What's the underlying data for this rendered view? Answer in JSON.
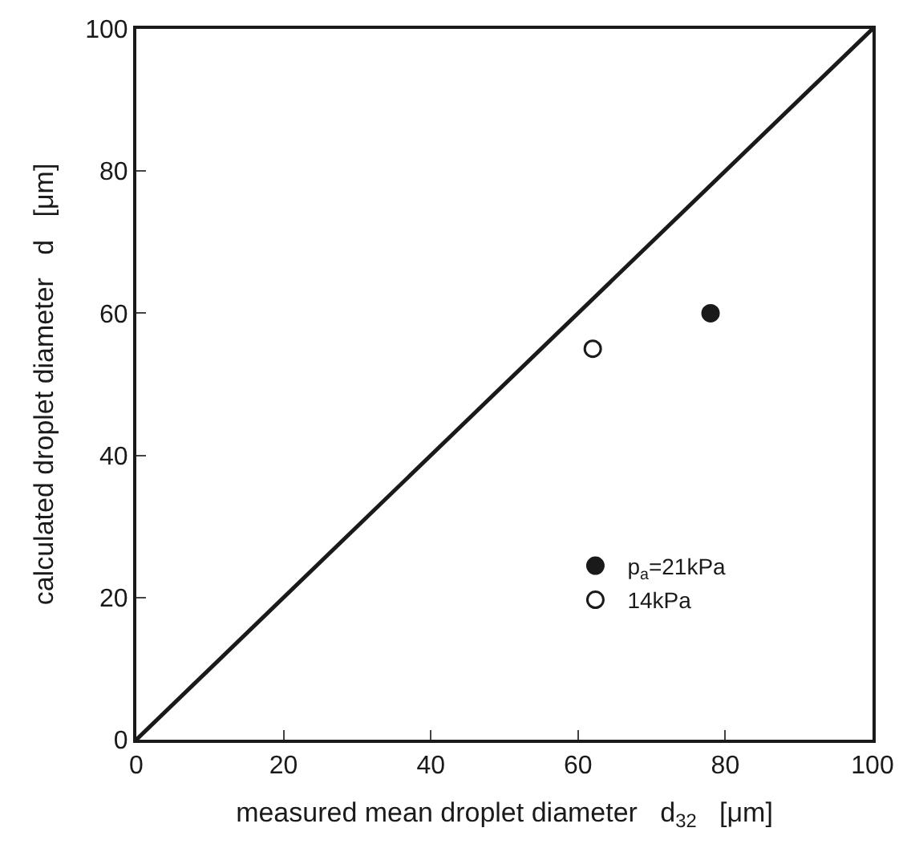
{
  "chart_data": {
    "type": "scatter",
    "xlabel": "measured mean droplet diameter   d$_{32}$   [μm]",
    "ylabel": "calculated droplet diameter   d   [μm]",
    "series": [
      {
        "name": "p$_{a}$=21kPa",
        "color": "#1a1a1a",
        "marker": "circle",
        "x": [
          78
        ],
        "values": [
          60
        ]
      },
      {
        "name": "14kPa",
        "color": "#ffffff",
        "marker": "circle",
        "x": [
          62
        ],
        "values": [
          55
        ]
      },
      {
        "type": "line",
        "color": "#1a1a1a",
        "x": [
          0,
          100
        ],
        "values": [
          0,
          100
        ],
        "line_style": "solid"
      }
    ],
    "xlim": [
      0,
      100
    ],
    "ylim": [
      0,
      100
    ],
    "xticks": [
      0,
      20,
      40,
      60,
      80,
      100
    ],
    "yticks": [
      0,
      20,
      40,
      60,
      80,
      100
    ],
    "legend": "bottom right"
  }
}
